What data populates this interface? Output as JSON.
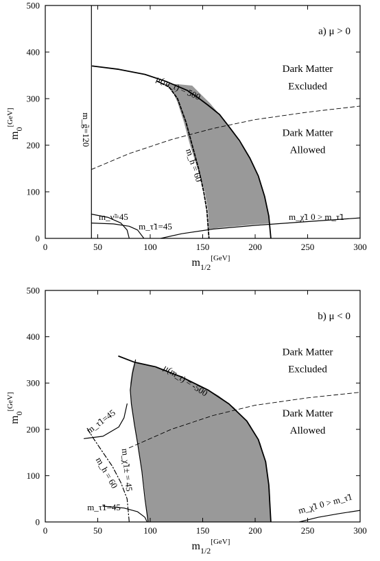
{
  "chart_data": [
    {
      "type": "line",
      "panel_label": "a)  μ > 0",
      "xlabel": "m",
      "xlabel_sub": "1/2",
      "xlabel_unit": "[GeV]",
      "ylabel": "m",
      "ylabel_sub": "0",
      "ylabel_unit": "[GeV]",
      "xlim": [
        0,
        300
      ],
      "ylim": [
        0,
        500
      ],
      "xticks": [
        0,
        50,
        100,
        150,
        200,
        250,
        300
      ],
      "yticks": [
        0,
        100,
        200,
        300,
        400,
        500
      ],
      "grid": false,
      "shaded_region": {
        "name": "allowed dark matter band",
        "color": "#999999",
        "upper_boundary": [
          [
            140,
            328
          ],
          [
            147,
            312
          ],
          [
            157,
            290
          ],
          [
            166,
            266
          ],
          [
            173,
            245
          ],
          [
            180,
            224
          ],
          [
            188,
            197
          ],
          [
            196,
            166
          ],
          [
            202,
            136
          ],
          [
            208,
            100
          ],
          [
            212,
            62
          ],
          [
            214,
            32
          ]
        ],
        "lower_boundary": [
          [
            214,
            32
          ],
          [
            200,
            30
          ],
          [
            170,
            24
          ],
          [
            156,
            20
          ],
          [
            155,
            60
          ],
          [
            152,
            100
          ],
          [
            145,
            150
          ],
          [
            138,
            200
          ],
          [
            132,
            250
          ],
          [
            126,
            292
          ],
          [
            122,
            312
          ],
          [
            118,
            325
          ],
          [
            112,
            332
          ]
        ],
        "top_boundary": [
          [
            112,
            332
          ],
          [
            126,
            331
          ],
          [
            140,
            328
          ]
        ]
      },
      "series": [
        {
          "label": "μ(m_t) = 500",
          "style": "solid",
          "width": 1.8,
          "points": [
            [
              45,
              370
            ],
            [
              70,
              363
            ],
            [
              95,
              352
            ],
            [
              115,
              337
            ],
            [
              135,
              318
            ],
            [
              145,
              303
            ],
            [
              155,
              286
            ],
            [
              166,
              266
            ],
            [
              175,
              240
            ],
            [
              185,
              210
            ],
            [
              195,
              172
            ],
            [
              203,
              134
            ],
            [
              209,
              90
            ],
            [
              213,
              48
            ],
            [
              215,
              0
            ]
          ]
        },
        {
          "label": "m_g̃ = 120",
          "style": "solid",
          "width": 1.2,
          "points": [
            [
              44,
              0
            ],
            [
              44,
              500
            ]
          ]
        },
        {
          "label": "m_h = 60",
          "style": "dashed-thick",
          "width": 1.8,
          "points": [
            [
              107,
              337
            ],
            [
              118,
              325
            ],
            [
              126,
              300
            ],
            [
              134,
              250
            ],
            [
              140,
              200
            ],
            [
              146,
              150
            ],
            [
              151,
              100
            ],
            [
              154,
              60
            ],
            [
              156,
              0
            ]
          ]
        },
        {
          "label": "DM boundary",
          "style": "dashed-thin",
          "width": 0.9,
          "points": [
            [
              44,
              148
            ],
            [
              80,
              182
            ],
            [
              120,
              212
            ],
            [
              160,
              236
            ],
            [
              200,
              255
            ],
            [
              250,
              271
            ],
            [
              300,
              284
            ]
          ]
        },
        {
          "label": "m_ν̃ = 45",
          "style": "solid",
          "width": 1.2,
          "points": [
            [
              44,
              52
            ],
            [
              60,
              45
            ],
            [
              72,
              33
            ],
            [
              78,
              18
            ],
            [
              80,
              0
            ]
          ]
        },
        {
          "label": "m_τ̃1 = 45",
          "style": "solid",
          "width": 1.2,
          "points": [
            [
              44,
              33
            ],
            [
              65,
              31
            ],
            [
              80,
              26
            ],
            [
              88,
              18
            ],
            [
              94,
              0
            ]
          ]
        },
        {
          "label": "m_χ̃1 0 > m_τ̃1",
          "style": "solid",
          "width": 1.2,
          "points": [
            [
              110,
              0
            ],
            [
              130,
              10
            ],
            [
              160,
              20
            ],
            [
              200,
              28
            ],
            [
              250,
              36
            ],
            [
              300,
              44
            ]
          ]
        }
      ],
      "annotations": [
        {
          "text": "Dark Matter",
          "at": [
            250,
            357
          ],
          "kind": "big"
        },
        {
          "text": "Excluded",
          "at": [
            250,
            320
          ],
          "kind": "big"
        },
        {
          "text": "Dark Matter",
          "at": [
            250,
            220
          ],
          "kind": "big"
        },
        {
          "text": "Allowed",
          "at": [
            250,
            183
          ],
          "kind": "big"
        },
        {
          "text": "μ(m_t) = 500",
          "at": [
            105,
            338
          ],
          "kind": "math",
          "rotate": 24
        },
        {
          "text": "m_g̃=120",
          "at": [
            36,
            270
          ],
          "kind": "math",
          "rotate": 90
        },
        {
          "text": "m_h = 60",
          "at": [
            134,
            190
          ],
          "kind": "math",
          "rotate": 72
        },
        {
          "text": "m_ν̃=45",
          "at": [
            51,
            40
          ],
          "kind": "math",
          "rotate": 0
        },
        {
          "text": "m_τ̃1=45",
          "at": [
            89,
            19
          ],
          "kind": "math",
          "rotate": 0
        },
        {
          "text": "m_χ̃1 0 > m_τ̃1",
          "at": [
            232,
            40
          ],
          "kind": "math",
          "rotate": 0
        }
      ]
    },
    {
      "type": "line",
      "panel_label": "b)  μ < 0",
      "xlabel": "m",
      "xlabel_sub": "1/2",
      "xlabel_unit": "[GeV]",
      "ylabel": "m",
      "ylabel_sub": "0",
      "ylabel_unit": "[GeV]",
      "xlim": [
        0,
        300
      ],
      "ylim": [
        0,
        500
      ],
      "xticks": [
        0,
        50,
        100,
        150,
        200,
        250,
        300
      ],
      "yticks": [
        0,
        100,
        200,
        300,
        400,
        500
      ],
      "grid": false,
      "shaded_region": {
        "name": "allowed dark matter band",
        "color": "#999999",
        "upper_boundary": [
          [
            85,
            345
          ],
          [
            95,
            340
          ],
          [
            110,
            330
          ],
          [
            130,
            313
          ],
          [
            150,
            292
          ],
          [
            165,
            273
          ],
          [
            180,
            247
          ],
          [
            195,
            210
          ],
          [
            205,
            170
          ],
          [
            211,
            120
          ],
          [
            214,
            70
          ],
          [
            215,
            0
          ]
        ],
        "lower_boundary": [
          [
            215,
            0
          ],
          [
            98,
            0
          ],
          [
            96,
            40
          ],
          [
            93,
            100
          ],
          [
            89,
            160
          ],
          [
            86,
            200
          ],
          [
            82,
            255
          ],
          [
            81,
            300
          ],
          [
            83,
            330
          ],
          [
            85,
            345
          ]
        ]
      },
      "series": [
        {
          "label": "μ(m_t) = -500",
          "style": "solid",
          "width": 1.8,
          "points": [
            [
              70,
              358
            ],
            [
              85,
              345
            ],
            [
              105,
              335
            ],
            [
              130,
              313
            ],
            [
              155,
              285
            ],
            [
              175,
              255
            ],
            [
              192,
              218
            ],
            [
              203,
              178
            ],
            [
              210,
              130
            ],
            [
              213,
              80
            ],
            [
              215,
              0
            ]
          ]
        },
        {
          "label": "m_χ̃1± = 45",
          "style": "solid",
          "width": 1.2,
          "points": [
            [
              86,
              350
            ],
            [
              83,
              320
            ],
            [
              81,
              285
            ],
            [
              82,
              255
            ],
            [
              85,
              210
            ],
            [
              88,
              170
            ],
            [
              92,
              110
            ],
            [
              95,
              50
            ],
            [
              98,
              0
            ]
          ]
        },
        {
          "label": "m_h = 60",
          "style": "dashdot",
          "width": 1.2,
          "points": [
            [
              40,
              202
            ],
            [
              46,
              180
            ],
            [
              55,
              150
            ],
            [
              64,
              120
            ],
            [
              72,
              85
            ],
            [
              78,
              50
            ],
            [
              80,
              0
            ]
          ]
        },
        {
          "label": "m_τ̃1 = 45 (upper)",
          "style": "solid",
          "width": 1.2,
          "points": [
            [
              37,
              180
            ],
            [
              55,
              185
            ],
            [
              70,
              205
            ],
            [
              75,
              225
            ],
            [
              78,
              255
            ]
          ]
        },
        {
          "label": "DM boundary",
          "style": "dashed-thin",
          "width": 0.9,
          "points": [
            [
              80,
              160
            ],
            [
              120,
              200
            ],
            [
              160,
              230
            ],
            [
              200,
              252
            ],
            [
              250,
              268
            ],
            [
              300,
              280
            ]
          ]
        },
        {
          "label": "m_τ̃1 = 45 (lower)",
          "style": "solid",
          "width": 1.2,
          "points": [
            [
              55,
              34
            ],
            [
              75,
              30
            ],
            [
              88,
              22
            ],
            [
              95,
              10
            ],
            [
              97,
              0
            ]
          ]
        },
        {
          "label": "m_χ̃1 0 > m_τ̃1",
          "style": "solid",
          "width": 1.2,
          "points": [
            [
              242,
              0
            ],
            [
              260,
              10
            ],
            [
              280,
              18
            ],
            [
              300,
              25
            ]
          ]
        }
      ],
      "annotations": [
        {
          "text": "Dark Matter",
          "at": [
            250,
            360
          ],
          "kind": "big"
        },
        {
          "text": "Excluded",
          "at": [
            250,
            323
          ],
          "kind": "big"
        },
        {
          "text": "Dark Matter",
          "at": [
            250,
            228
          ],
          "kind": "big"
        },
        {
          "text": "Allowed",
          "at": [
            250,
            191
          ],
          "kind": "big"
        },
        {
          "text": "μ(m_t) = -500",
          "at": [
            112,
            330
          ],
          "kind": "math",
          "rotate": 33
        },
        {
          "text": "m_τ̃1=45",
          "at": [
            42,
            190
          ],
          "kind": "math",
          "rotate": -37
        },
        {
          "text": "m_h = 60",
          "at": [
            48,
            135
          ],
          "kind": "math",
          "rotate": 60
        },
        {
          "text": "m_χ̃1± = 45",
          "at": [
            73,
            158
          ],
          "kind": "math",
          "rotate": 84
        },
        {
          "text": "m_τ̃1=45",
          "at": [
            40,
            25
          ],
          "kind": "math",
          "rotate": 0
        },
        {
          "text": "m_χ̃1 0 > m_τ̃1",
          "at": [
            242,
            18
          ],
          "kind": "math",
          "rotate": -15
        }
      ]
    }
  ]
}
